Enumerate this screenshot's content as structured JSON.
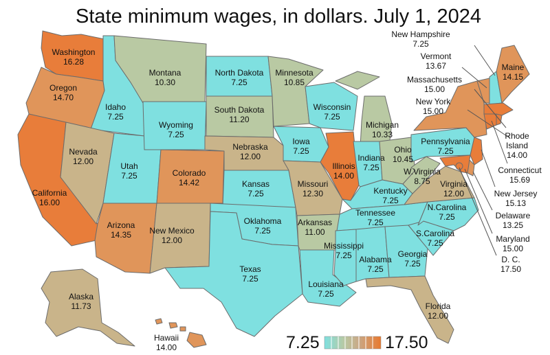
{
  "title": "State minimum wages, in dollars. July 1, 2024",
  "palette": {
    "low": "#7fe0e0",
    "midlow": "#b9c9a3",
    "mid": "#c9b48a",
    "midhigh": "#e0955a",
    "high": "#e87d3a",
    "border": "#6b6b6b"
  },
  "legend": {
    "min_label": "7.25",
    "max_label": "17.50",
    "min": 7.25,
    "max": 17.5
  },
  "chart_data": {
    "type": "choropleth",
    "title": "State minimum wages, in dollars. July 1, 2024",
    "unit": "dollars",
    "range": [
      7.25,
      17.5
    ],
    "states": [
      {
        "name": "Washington",
        "value": "16.28"
      },
      {
        "name": "Oregon",
        "value": "14.70"
      },
      {
        "name": "California",
        "value": "16.00"
      },
      {
        "name": "Idaho",
        "value": "7.25"
      },
      {
        "name": "Nevada",
        "value": "12.00"
      },
      {
        "name": "Utah",
        "value": "7.25"
      },
      {
        "name": "Arizona",
        "value": "14.35"
      },
      {
        "name": "Montana",
        "value": "10.30"
      },
      {
        "name": "Wyoming",
        "value": "7.25"
      },
      {
        "name": "Colorado",
        "value": "14.42"
      },
      {
        "name": "New Mexico",
        "value": "12.00"
      },
      {
        "name": "North Dakota",
        "value": "7.25"
      },
      {
        "name": "South Dakota",
        "value": "11.20"
      },
      {
        "name": "Nebraska",
        "value": "12.00"
      },
      {
        "name": "Kansas",
        "value": "7.25"
      },
      {
        "name": "Oklahoma",
        "value": "7.25"
      },
      {
        "name": "Texas",
        "value": "7.25"
      },
      {
        "name": "Minnesota",
        "value": "10.85"
      },
      {
        "name": "Iowa",
        "value": "7.25"
      },
      {
        "name": "Missouri",
        "value": "12.30"
      },
      {
        "name": "Arkansas",
        "value": "11.00"
      },
      {
        "name": "Louisiana",
        "value": "7.25"
      },
      {
        "name": "Wisconsin",
        "value": "7.25"
      },
      {
        "name": "Illinois",
        "value": "14.00"
      },
      {
        "name": "Michigan",
        "value": "10.33"
      },
      {
        "name": "Indiana",
        "value": "7.25"
      },
      {
        "name": "Ohio",
        "value": "10.45"
      },
      {
        "name": "Kentucky",
        "value": "7.25"
      },
      {
        "name": "Tennessee",
        "value": "7.25"
      },
      {
        "name": "Mississippi",
        "value": "7.25"
      },
      {
        "name": "Alabama",
        "value": "7.25"
      },
      {
        "name": "Georgia",
        "value": "7.25"
      },
      {
        "name": "Florida",
        "value": "12.00"
      },
      {
        "name": "S.Carolina",
        "value": "7.25"
      },
      {
        "name": "N.Carolina",
        "value": "7.25"
      },
      {
        "name": "Virginia",
        "value": "12.00"
      },
      {
        "name": "W.Virginia",
        "value": "8.75"
      },
      {
        "name": "Pennsylvania",
        "value": "7.25"
      },
      {
        "name": "New York",
        "value": "15.00"
      },
      {
        "name": "Vermont",
        "value": "13.67"
      },
      {
        "name": "New Hampshire",
        "value": "7.25"
      },
      {
        "name": "Maine",
        "value": "14.15"
      },
      {
        "name": "Massachusetts",
        "value": "15.00"
      },
      {
        "name": "Rhode Island",
        "value": "14.00"
      },
      {
        "name": "Connecticut",
        "value": "15.69"
      },
      {
        "name": "New Jersey",
        "value": "15.13"
      },
      {
        "name": "Delaware",
        "value": "13.25"
      },
      {
        "name": "Maryland",
        "value": "15.00"
      },
      {
        "name": "D. C.",
        "value": "17.50"
      },
      {
        "name": "Alaska",
        "value": "11.73"
      },
      {
        "name": "Hawaii",
        "value": "14.00"
      }
    ]
  },
  "labels": {
    "wa": [
      "Washington",
      "16.28"
    ],
    "or": [
      "Oregon",
      "14.70"
    ],
    "ca": [
      "California",
      "16.00"
    ],
    "id": [
      "Idaho",
      "7.25"
    ],
    "nv": [
      "Nevada",
      "12.00"
    ],
    "ut": [
      "Utah",
      "7.25"
    ],
    "az": [
      "Arizona",
      "14.35"
    ],
    "mt": [
      "Montana",
      "10.30"
    ],
    "wy": [
      "Wyoming",
      "7.25"
    ],
    "co": [
      "Colorado",
      "14.42"
    ],
    "nm": [
      "New Mexico",
      "12.00"
    ],
    "nd": [
      "North Dakota",
      "7.25"
    ],
    "sd": [
      "South Dakota",
      "11.20"
    ],
    "ne": [
      "Nebraska",
      "12.00"
    ],
    "ks": [
      "Kansas",
      "7.25"
    ],
    "ok": [
      "Oklahoma",
      "7.25"
    ],
    "tx": [
      "Texas",
      "7.25"
    ],
    "mn": [
      "Minnesota",
      "10.85"
    ],
    "ia": [
      "Iowa",
      "7.25"
    ],
    "mo": [
      "Missouri",
      "12.30"
    ],
    "ar": [
      "Arkansas",
      "11.00"
    ],
    "la": [
      "Louisiana",
      "7.25"
    ],
    "wi": [
      "Wisconsin",
      "7.25"
    ],
    "il": [
      "Illinois",
      "14.00"
    ],
    "mi": [
      "Michigan",
      "10.33"
    ],
    "in": [
      "Indiana",
      "7.25"
    ],
    "oh": [
      "Ohio",
      "10.45"
    ],
    "ky": [
      "Kentucky",
      "7.25"
    ],
    "tn": [
      "Tennessee",
      "7.25"
    ],
    "ms": [
      "Mississippi",
      "7.25"
    ],
    "al": [
      "Alabama",
      "7.25"
    ],
    "ga": [
      "Georgia",
      "7.25"
    ],
    "fl": [
      "Florida",
      "12.00"
    ],
    "sc": [
      "S.Carolina",
      "7.25"
    ],
    "nc": [
      "N.Carolina",
      "7.25"
    ],
    "va": [
      "Virginia",
      "12.00"
    ],
    "wv": [
      "W.Virginia",
      "8.75"
    ],
    "pa": [
      "Pennsylvania",
      "7.25"
    ],
    "ny": [
      "New York",
      "15.00"
    ],
    "vt": [
      "Vermont",
      "13.67"
    ],
    "nh": [
      "New Hampshire",
      "7.25"
    ],
    "me": [
      "Maine",
      "14.15"
    ],
    "ma": [
      "Massachusetts",
      "15.00"
    ],
    "ri": [
      "Rhode",
      "Island",
      "14.00"
    ],
    "ct": [
      "Connecticut",
      "15.69"
    ],
    "nj": [
      "New Jersey",
      "15.13"
    ],
    "de": [
      "Delaware",
      "13.25"
    ],
    "md": [
      "Maryland",
      "15.00"
    ],
    "dc": [
      "D. C.",
      "17.50"
    ],
    "ak": [
      "Alaska",
      "11.73"
    ],
    "hi": [
      "Hawaii",
      "14.00"
    ]
  }
}
